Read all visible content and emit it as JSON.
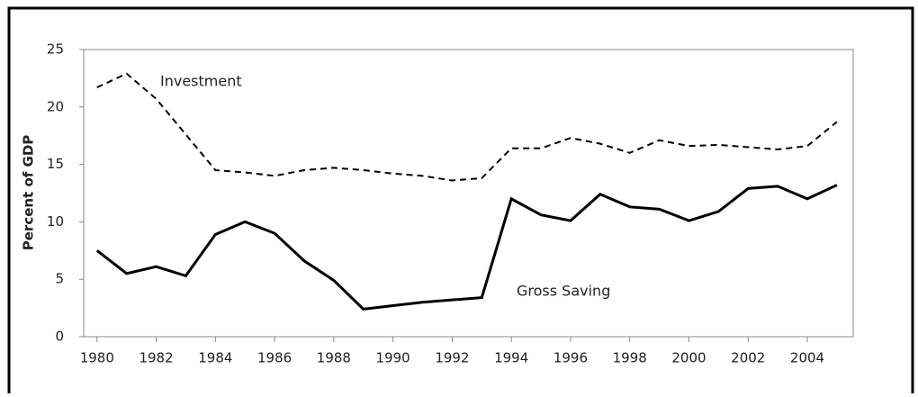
{
  "chart_data": {
    "type": "line",
    "y_label": "Percent of GDP",
    "x": [
      1980,
      1981,
      1982,
      1983,
      1984,
      1985,
      1986,
      1987,
      1988,
      1989,
      1990,
      1991,
      1992,
      1993,
      1994,
      1995,
      1996,
      1997,
      1998,
      1999,
      2000,
      2001,
      2002,
      2003,
      2004,
      2005
    ],
    "series": [
      {
        "name": "Investment",
        "color": "#000000",
        "dash": true,
        "values": [
          21.7,
          22.9,
          20.7,
          17.6,
          14.5,
          14.3,
          14.0,
          14.5,
          14.7,
          14.5,
          14.2,
          14.0,
          13.6,
          13.8,
          16.4,
          16.4,
          17.3,
          16.8,
          16.0,
          17.1,
          16.6,
          16.7,
          16.5,
          16.3,
          16.6,
          18.7
        ]
      },
      {
        "name": "Gross Saving",
        "color": "#000000",
        "dash": false,
        "values": [
          7.5,
          5.5,
          6.1,
          5.3,
          8.9,
          10.0,
          9.0,
          6.6,
          4.9,
          2.4,
          2.7,
          3.0,
          3.2,
          3.4,
          12.0,
          10.6,
          10.1,
          12.4,
          11.3,
          11.1,
          10.1,
          10.9,
          12.9,
          13.1,
          12.0,
          13.2
        ]
      }
    ],
    "xlim": [
      1979.55,
      2005.55
    ],
    "xticks": [
      1980,
      1982,
      1984,
      1986,
      1988,
      1990,
      1992,
      1994,
      1996,
      1998,
      2000,
      2002,
      2004
    ],
    "ylim": [
      0,
      25
    ],
    "yticks": [
      0,
      5,
      10,
      15,
      20,
      25
    ]
  }
}
